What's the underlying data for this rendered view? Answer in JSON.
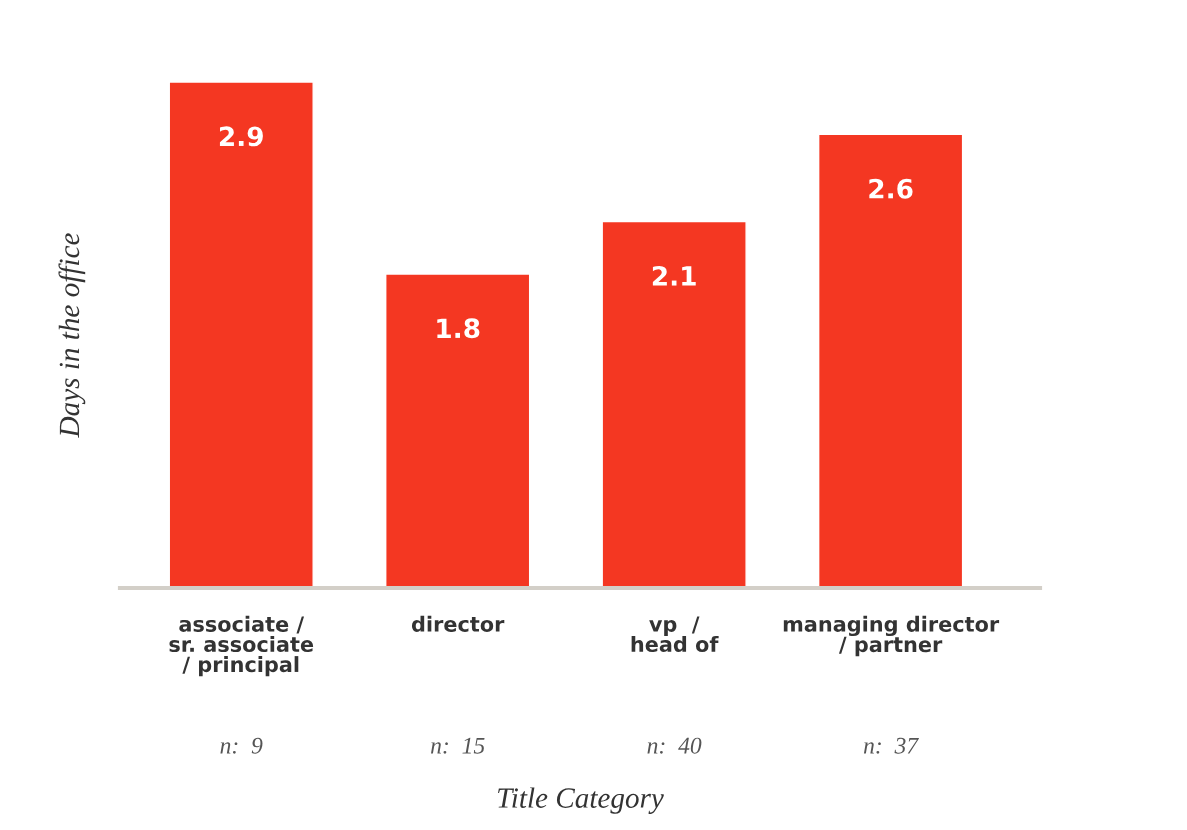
{
  "chart_data": {
    "type": "bar",
    "categories": [
      "associate /\nsr. associate\n/ principal",
      "director",
      "vp  /\nhead of",
      "managing director\n/ partner"
    ],
    "values": [
      2.9,
      1.8,
      2.1,
      2.6
    ],
    "color": "#f43722",
    "relative": false,
    "data_labels": true,
    "ylim": [
      0,
      2.9
    ],
    "tick_labels": "x",
    "grid": false,
    "legend": false,
    "xlabel": "Title Category",
    "ylabel": "Days in the office",
    "annotations": [
      "n:  9",
      "n:  15",
      "n:  40",
      "n:  37"
    ]
  }
}
